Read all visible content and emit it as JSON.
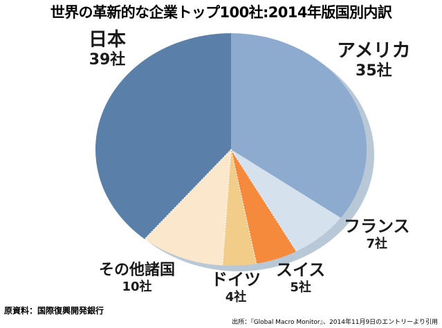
{
  "chart_data": {
    "type": "pie",
    "title": "世界の革新的な企業トップ100社:2014年版国別内訳",
    "unit": "社",
    "slices": [
      {
        "name": "アメリカ",
        "value": 35,
        "label": "35社",
        "color": "#8dabcf"
      },
      {
        "name": "フランス",
        "value": 7,
        "label": "7社",
        "color": "#d5e2ee"
      },
      {
        "name": "スイス",
        "value": 5,
        "label": "5社",
        "color": "#f58a3c"
      },
      {
        "name": "ドイツ",
        "value": 4,
        "label": "4社",
        "color": "#f2cd8a"
      },
      {
        "name": "その他諸国",
        "value": 10,
        "label": "10社",
        "color": "#fbe8cc"
      },
      {
        "name": "日本",
        "value": 39,
        "label": "39社",
        "color": "#5a80a9"
      }
    ],
    "start": "12 o'clock",
    "direction": "clockwise"
  },
  "footer": {
    "source_left": "原資料：国際復興開発銀行",
    "source_right": "出所：『Global Macro Monitor』、2014年11月9日のエントリーより引用"
  }
}
